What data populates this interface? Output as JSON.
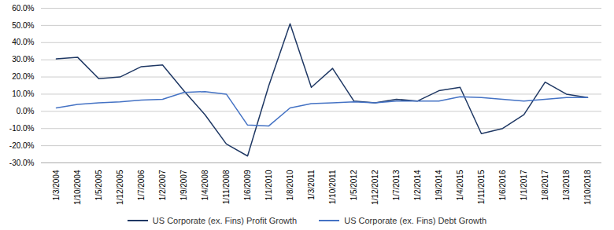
{
  "chart_data": {
    "type": "line",
    "categories": [
      "1/3/2004",
      "1/10/2004",
      "1/5/2005",
      "1/12/2005",
      "1/7/2006",
      "1/2/2007",
      "1/9/2007",
      "1/4/2008",
      "1/11/2008",
      "1/6/2009",
      "1/1/2010",
      "1/8/2010",
      "1/3/2011",
      "1/10/2011",
      "1/5/2012",
      "1/12/2012",
      "1/7/2013",
      "1/2/2014",
      "1/9/2014",
      "1/4/2015",
      "1/11/2015",
      "1/6/2016",
      "1/1/2017",
      "1/8/2017",
      "1/3/2018",
      "1/10/2018"
    ],
    "series": [
      {
        "name": "US Corporate (ex. Fins) Profit Growth",
        "color": "#1f3864",
        "values": [
          0.305,
          0.315,
          0.19,
          0.2,
          0.26,
          0.27,
          0.12,
          -0.02,
          -0.19,
          -0.26,
          0.15,
          0.51,
          0.14,
          0.25,
          0.06,
          0.05,
          0.07,
          0.06,
          0.12,
          0.14,
          -0.13,
          -0.1,
          -0.02,
          0.17,
          0.1,
          0.08
        ]
      },
      {
        "name": "US Corporate (ex. Fins) Debt Growth",
        "color": "#4472c4",
        "values": [
          0.02,
          0.04,
          0.05,
          0.055,
          0.065,
          0.07,
          0.11,
          0.115,
          0.1,
          -0.08,
          -0.085,
          0.02,
          0.045,
          0.05,
          0.055,
          0.05,
          0.06,
          0.06,
          0.06,
          0.085,
          0.08,
          0.07,
          0.06,
          0.07,
          0.08,
          0.08
        ]
      }
    ],
    "ylim": [
      -0.3,
      0.6
    ],
    "yticks": [
      {
        "value": -0.3,
        "label": "-30.0%"
      },
      {
        "value": -0.2,
        "label": "-20.0%"
      },
      {
        "value": -0.1,
        "label": "-10.0%"
      },
      {
        "value": 0.0,
        "label": "0.0%"
      },
      {
        "value": 0.1,
        "label": "10.0%"
      },
      {
        "value": 0.2,
        "label": "20.0%"
      },
      {
        "value": 0.3,
        "label": "30.0%"
      },
      {
        "value": 0.4,
        "label": "40.0%"
      },
      {
        "value": 0.5,
        "label": "50.0%"
      },
      {
        "value": 0.6,
        "label": "60.0%"
      }
    ],
    "grid": true,
    "legend": "bottom"
  }
}
